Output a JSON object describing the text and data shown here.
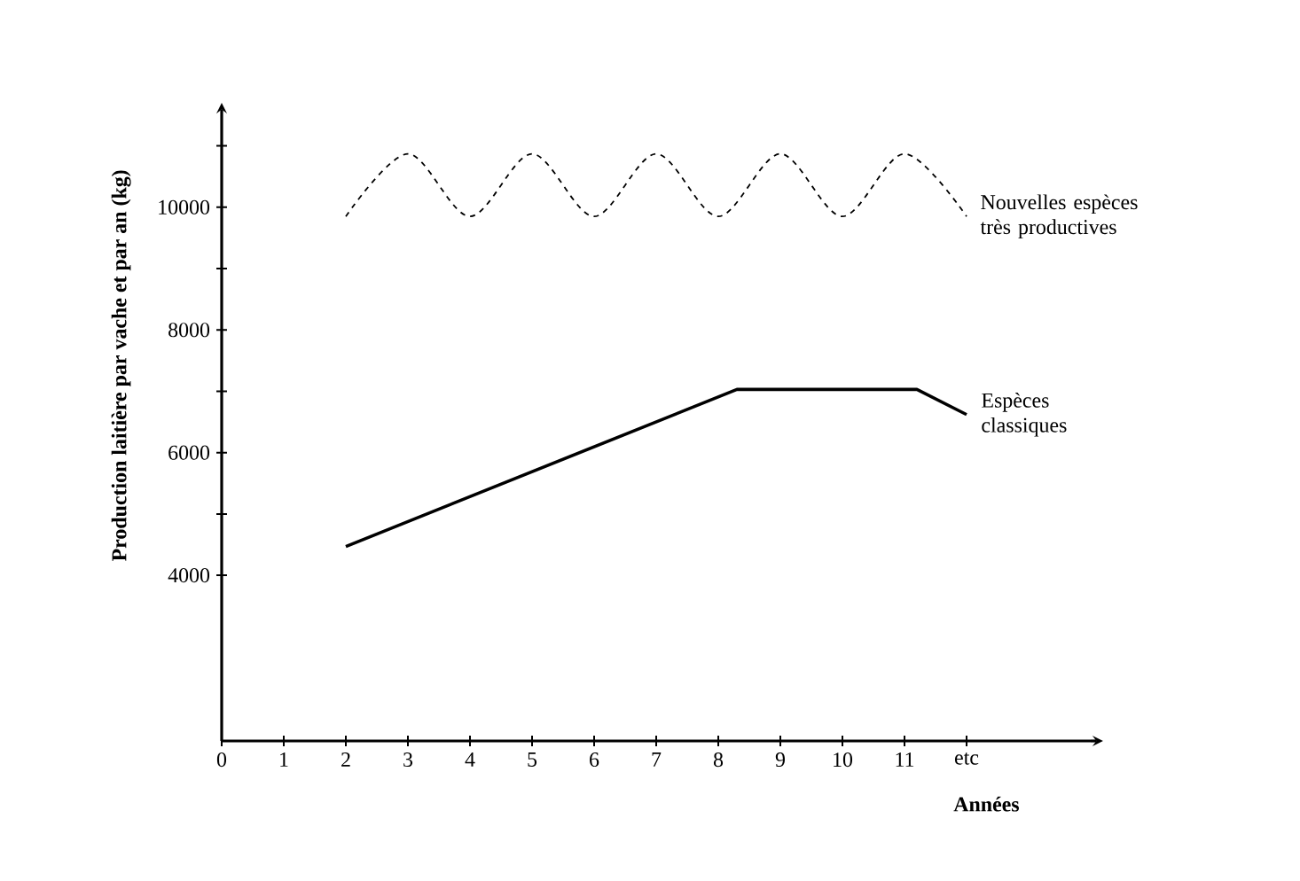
{
  "chart_data": {
    "type": "line",
    "xlabel": "Années",
    "ylabel": "Production laitière par vache et par an (kg)",
    "xlim": [
      0,
      14
    ],
    "ylim": [
      1300,
      11500
    ],
    "xticks": [
      0,
      1,
      2,
      3,
      4,
      5,
      6,
      7,
      8,
      9,
      10,
      11,
      {
        "value": 12,
        "label": "etc"
      }
    ],
    "yticks": [
      {
        "value": 11000,
        "label": null
      },
      10000,
      {
        "value": 9000,
        "label": null
      },
      8000,
      {
        "value": 7000,
        "label": null
      },
      6000,
      {
        "value": 5000,
        "label": null
      },
      4000
    ],
    "grid": false,
    "legend": false,
    "marker": "none",
    "series": [
      {
        "name": "Nouvelles espèces très productives",
        "color": "#000000",
        "line_style": "dashed",
        "x": [
          2,
          3,
          4,
          5,
          6,
          7,
          8,
          9,
          10,
          11,
          12
        ],
        "values": [
          9850,
          10870,
          9850,
          10870,
          9850,
          10870,
          9850,
          10870,
          9850,
          10870,
          9850
        ]
      },
      {
        "name": "Espèces classiques",
        "color": "#000000",
        "line_style": "solid",
        "x": [
          2,
          8.3,
          11.2,
          12
        ],
        "values": [
          4470,
          7030,
          7030,
          6620
        ]
      }
    ]
  }
}
